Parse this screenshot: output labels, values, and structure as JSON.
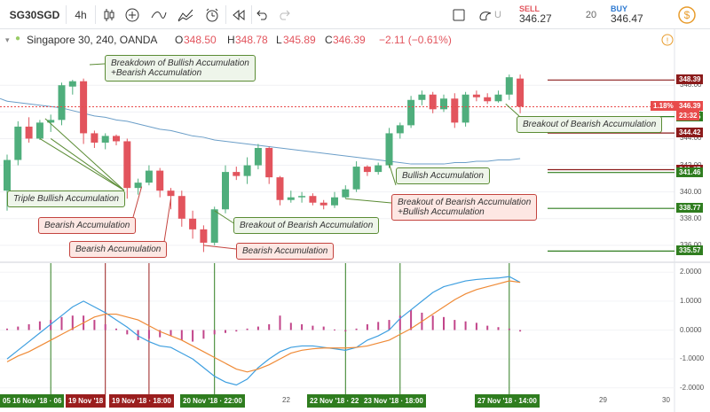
{
  "toolbar": {
    "symbol": "SG30SGD",
    "interval": "4h",
    "sell": {
      "label": "SELL",
      "price": "346.27"
    },
    "spread": "20",
    "buy": {
      "label": "BUY",
      "price": "346.47"
    },
    "icons": [
      "candles-icon",
      "add-indicator-icon",
      "line-tool-icon",
      "indicators-icon",
      "alert-icon",
      "replay-icon",
      "undo-icon",
      "redo-icon",
      "fullscreen-icon",
      "theme-icon",
      "settings-icon"
    ],
    "truncated_label": "U"
  },
  "legend": {
    "title": "Singapore 30, 240, OANDA",
    "open_label": "O",
    "open": "348.50",
    "high_label": "H",
    "high": "348.78",
    "low_label": "L",
    "low": "345.89",
    "close_label": "C",
    "close": "346.39",
    "change": "−2.11 (−0.61%)"
  },
  "colors": {
    "up": "#4fae7c",
    "down": "#e2545d",
    "ma": "#6b9ec8",
    "macd": "#3e9fe0",
    "signal": "#ef8a36",
    "hist": "#c2458a",
    "level_red": "#8b1b1b",
    "level_green": "#2f7d1f",
    "price_red": "#e84b4b"
  },
  "chart_data": [
    {
      "type": "candlestick",
      "title": "Singapore 30, 240, OANDA",
      "ylim": [
        334.8,
        351.4
      ],
      "y_ticks": [
        336.0,
        338.0,
        340.0,
        342.0,
        344.0,
        346.0,
        348.0
      ],
      "candles": [
        {
          "o": 340.1,
          "h": 342.8,
          "l": 338.6,
          "c": 342.4
        },
        {
          "o": 342.4,
          "h": 345.3,
          "l": 342.0,
          "c": 344.9
        },
        {
          "o": 344.9,
          "h": 345.6,
          "l": 343.7,
          "c": 344.0
        },
        {
          "o": 344.0,
          "h": 345.4,
          "l": 343.9,
          "c": 345.2
        },
        {
          "o": 345.2,
          "h": 345.8,
          "l": 344.5,
          "c": 345.4
        },
        {
          "o": 345.4,
          "h": 348.2,
          "l": 345.0,
          "c": 348.0
        },
        {
          "o": 347.9,
          "h": 348.4,
          "l": 347.3,
          "c": 348.3
        },
        {
          "o": 348.3,
          "h": 348.5,
          "l": 343.6,
          "c": 344.4
        },
        {
          "o": 344.4,
          "h": 344.6,
          "l": 343.3,
          "c": 343.7
        },
        {
          "o": 343.7,
          "h": 344.4,
          "l": 343.2,
          "c": 344.2
        },
        {
          "o": 344.2,
          "h": 344.3,
          "l": 343.5,
          "c": 343.8
        },
        {
          "o": 343.8,
          "h": 344.0,
          "l": 339.5,
          "c": 340.3
        },
        {
          "o": 340.3,
          "h": 341.0,
          "l": 339.8,
          "c": 340.7
        },
        {
          "o": 340.7,
          "h": 342.0,
          "l": 340.5,
          "c": 341.6
        },
        {
          "o": 341.6,
          "h": 341.8,
          "l": 339.6,
          "c": 340.1
        },
        {
          "o": 340.1,
          "h": 340.3,
          "l": 338.7,
          "c": 339.7
        },
        {
          "o": 339.7,
          "h": 340.1,
          "l": 337.4,
          "c": 338.0
        },
        {
          "o": 338.0,
          "h": 338.6,
          "l": 336.5,
          "c": 337.2
        },
        {
          "o": 337.2,
          "h": 337.5,
          "l": 335.5,
          "c": 336.2
        },
        {
          "o": 336.2,
          "h": 338.9,
          "l": 336.0,
          "c": 338.7
        },
        {
          "o": 338.7,
          "h": 342.0,
          "l": 338.4,
          "c": 341.5
        },
        {
          "o": 341.5,
          "h": 341.9,
          "l": 340.9,
          "c": 341.2
        },
        {
          "o": 341.2,
          "h": 342.6,
          "l": 340.6,
          "c": 342.0
        },
        {
          "o": 342.0,
          "h": 343.6,
          "l": 341.7,
          "c": 343.3
        },
        {
          "o": 343.3,
          "h": 343.4,
          "l": 340.6,
          "c": 341.1
        },
        {
          "o": 341.1,
          "h": 341.2,
          "l": 339.0,
          "c": 339.4
        },
        {
          "o": 339.4,
          "h": 340.1,
          "l": 339.2,
          "c": 339.6
        },
        {
          "o": 339.6,
          "h": 340.0,
          "l": 339.2,
          "c": 339.7
        },
        {
          "o": 339.7,
          "h": 339.9,
          "l": 339.0,
          "c": 339.2
        },
        {
          "o": 339.2,
          "h": 339.4,
          "l": 338.7,
          "c": 339.0
        },
        {
          "o": 339.0,
          "h": 340.0,
          "l": 338.8,
          "c": 339.6
        },
        {
          "o": 339.6,
          "h": 340.5,
          "l": 339.5,
          "c": 340.2
        },
        {
          "o": 340.2,
          "h": 342.3,
          "l": 340.0,
          "c": 341.9
        },
        {
          "o": 341.9,
          "h": 342.0,
          "l": 341.2,
          "c": 341.5
        },
        {
          "o": 341.5,
          "h": 342.2,
          "l": 341.3,
          "c": 342.0
        },
        {
          "o": 342.0,
          "h": 344.8,
          "l": 341.8,
          "c": 344.4
        },
        {
          "o": 344.4,
          "h": 345.2,
          "l": 344.0,
          "c": 345.0
        },
        {
          "o": 345.0,
          "h": 347.2,
          "l": 344.8,
          "c": 346.9
        },
        {
          "o": 346.9,
          "h": 347.6,
          "l": 346.5,
          "c": 347.3
        },
        {
          "o": 347.3,
          "h": 347.5,
          "l": 345.9,
          "c": 346.2
        },
        {
          "o": 346.2,
          "h": 347.3,
          "l": 346.0,
          "c": 347.0
        },
        {
          "o": 347.0,
          "h": 347.4,
          "l": 344.8,
          "c": 345.2
        },
        {
          "o": 345.2,
          "h": 347.5,
          "l": 344.9,
          "c": 347.3
        },
        {
          "o": 347.3,
          "h": 347.6,
          "l": 346.8,
          "c": 347.1
        },
        {
          "o": 347.1,
          "h": 347.4,
          "l": 346.6,
          "c": 346.8
        },
        {
          "o": 346.8,
          "h": 347.6,
          "l": 346.7,
          "c": 347.3
        },
        {
          "o": 347.3,
          "h": 348.8,
          "l": 346.9,
          "c": 348.6
        },
        {
          "o": 348.5,
          "h": 348.8,
          "l": 345.9,
          "c": 346.4
        }
      ],
      "moving_average": [
        346.8,
        346.7,
        346.6,
        346.5,
        346.4,
        346.3,
        346.1,
        345.9,
        345.7,
        345.6,
        345.4,
        345.3,
        345.1,
        344.9,
        344.7,
        344.6,
        344.4,
        344.2,
        344.1,
        343.9,
        343.8,
        343.7,
        343.6,
        343.5,
        343.4,
        343.3,
        343.2,
        343.1,
        343.0,
        342.9,
        342.8,
        342.7,
        342.6,
        342.5,
        342.4,
        342.3,
        342.2,
        342.1,
        342.1,
        342.1,
        342.1,
        342.2,
        342.2,
        342.3,
        342.3,
        342.4,
        342.4,
        342.5
      ],
      "price_levels": [
        {
          "value": "348.39",
          "color": "red"
        },
        {
          "value": "345.65",
          "color": "green"
        },
        {
          "value": "344.42",
          "color": "red"
        },
        {
          "value": "341.67",
          "color": "red"
        },
        {
          "value": "341.46",
          "color": "green"
        },
        {
          "value": "338.77",
          "color": "green"
        },
        {
          "value": "335.57",
          "color": "green"
        }
      ],
      "current_price": {
        "value": "346.39",
        "percent": "1.18%",
        "countdown": "23:32"
      },
      "annotations": [
        "Breakdown of Bullish Accumulation\n+Bearish Accumulation",
        "Triple Bullish Accumulation",
        "Bearish Accumulation",
        "Bearish Accumulation",
        "Breakout of Bearish Accumulation",
        "Bearish Accumulation",
        "Bullish Accumulation",
        "Breakout of Bearish Accumulation\n+Bullish Accumulation",
        "Breakout of Bearish Accumulation"
      ]
    },
    {
      "type": "line",
      "indicator": "MACD",
      "ylim": [
        -2.1,
        2.1
      ],
      "y_ticks": [
        "2.0000",
        "1.0000",
        "0.0000",
        "-1.0000",
        "-2.0000"
      ],
      "series": [
        {
          "values": [
            -1.0,
            -0.7,
            -0.4,
            -0.1,
            0.2,
            0.5,
            0.8,
            1.0,
            0.8,
            0.6,
            0.35,
            0.1,
            -0.2,
            -0.4,
            -0.55,
            -0.6,
            -0.8,
            -1.0,
            -1.3,
            -1.6,
            -1.8,
            -1.9,
            -1.7,
            -1.3,
            -1.0,
            -0.75,
            -0.6,
            -0.55,
            -0.55,
            -0.6,
            -0.65,
            -0.7,
            -0.6,
            -0.35,
            -0.2,
            0.0,
            0.4,
            0.7,
            1.0,
            1.3,
            1.5,
            1.6,
            1.7,
            1.75,
            1.78,
            1.8,
            1.85,
            1.65
          ]
        },
        {
          "values": [
            -1.1,
            -0.9,
            -0.75,
            -0.55,
            -0.35,
            -0.15,
            0.05,
            0.25,
            0.45,
            0.55,
            0.55,
            0.45,
            0.35,
            0.15,
            -0.05,
            -0.2,
            -0.35,
            -0.55,
            -0.75,
            -0.95,
            -1.15,
            -1.35,
            -1.45,
            -1.35,
            -1.2,
            -1.0,
            -0.8,
            -0.7,
            -0.65,
            -0.62,
            -0.62,
            -0.62,
            -0.6,
            -0.55,
            -0.45,
            -0.35,
            -0.15,
            0.05,
            0.3,
            0.55,
            0.8,
            1.05,
            1.25,
            1.4,
            1.5,
            1.6,
            1.7,
            1.65
          ]
        }
      ],
      "histogram": [
        0.05,
        0.12,
        0.2,
        0.3,
        0.35,
        0.45,
        0.5,
        0.5,
        0.35,
        0.2,
        0.05,
        -0.15,
        -0.35,
        -0.3,
        -0.25,
        -0.2,
        -0.35,
        -0.4,
        -0.3,
        -0.15,
        -0.1,
        -0.05,
        0.05,
        0.12,
        0.2,
        0.5,
        0.25,
        0.2,
        0.15,
        0.12,
        0.02,
        -0.05,
        0.05,
        0.2,
        0.28,
        0.35,
        0.5,
        0.7,
        0.6,
        0.5,
        0.45,
        0.35,
        0.3,
        0.25,
        0.15,
        0.1,
        0.05,
        -0.05
      ],
      "markers": [
        {
          "label": "05 16 Nov '18 · 06",
          "color": "green"
        },
        {
          "label": "19 Nov '18",
          "color": "red"
        },
        {
          "label": "19 Nov '18 · 18:00",
          "color": "red"
        },
        {
          "label": "20 Nov '18 · 22:00",
          "color": "green"
        },
        {
          "label": "22 Nov '18 · 22",
          "color": "green"
        },
        {
          "label": "23 Nov '18 · 18:00",
          "color": "green"
        },
        {
          "label": "27 Nov '18 · 14:00",
          "color": "green"
        }
      ],
      "x_ticks": [
        "22",
        "29",
        "30"
      ]
    }
  ]
}
